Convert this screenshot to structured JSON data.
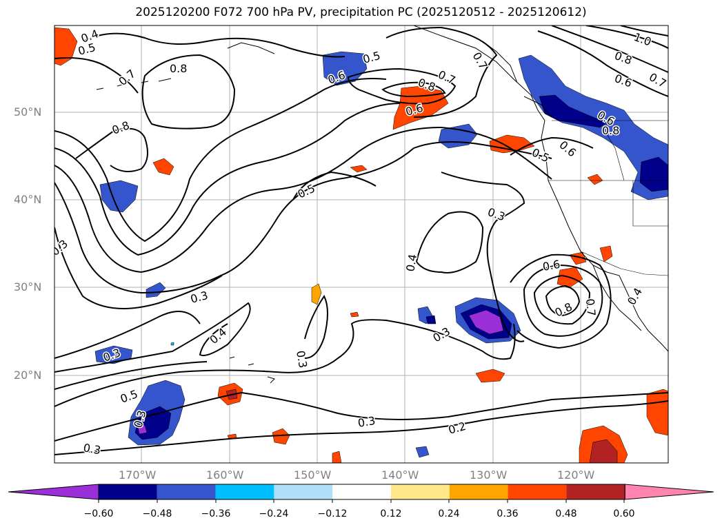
{
  "title": "2025120200 F072 700 hPa PV, precipitation PC (2025120512 - 2025120612)",
  "map": {
    "lon_ticks": [
      "170°W",
      "160°W",
      "150°W",
      "140°W",
      "130°W",
      "120°W"
    ],
    "lat_ticks": [
      "50°N",
      "40°N",
      "30°N",
      "20°N"
    ],
    "contour_labels": [
      "0.4",
      "0.5",
      "0.7",
      "0.8",
      "0.8",
      "0.3",
      "0.3",
      "0.4",
      "0.3",
      "0.5",
      "0.6",
      "0.5",
      "0.7",
      "0.8",
      "0.6",
      "0.5",
      "0.3",
      "0.4",
      "0.3",
      "0.3",
      "0.3",
      "0.2",
      "0.3",
      "0.6",
      "0.8",
      "0.7",
      "0.6",
      "0.8",
      "0.6",
      "0.7",
      "1.0",
      "0.8",
      "0.6",
      "0.7",
      "0.5",
      "0.4",
      "0.3"
    ],
    "gridlines": true
  },
  "colorbar": {
    "tick_labels": [
      "−0.60",
      "−0.48",
      "−0.36",
      "−0.24",
      "−0.12",
      "0.12",
      "0.24",
      "0.36",
      "0.48",
      "0.60"
    ],
    "colors": [
      "#9b30d9",
      "#00008b",
      "#3555cc",
      "#00bfff",
      "#b0e0f8",
      "#ffffff",
      "#ffe88a",
      "#ffa500",
      "#ff4500",
      "#b22222",
      "#ff85b0"
    ]
  }
}
